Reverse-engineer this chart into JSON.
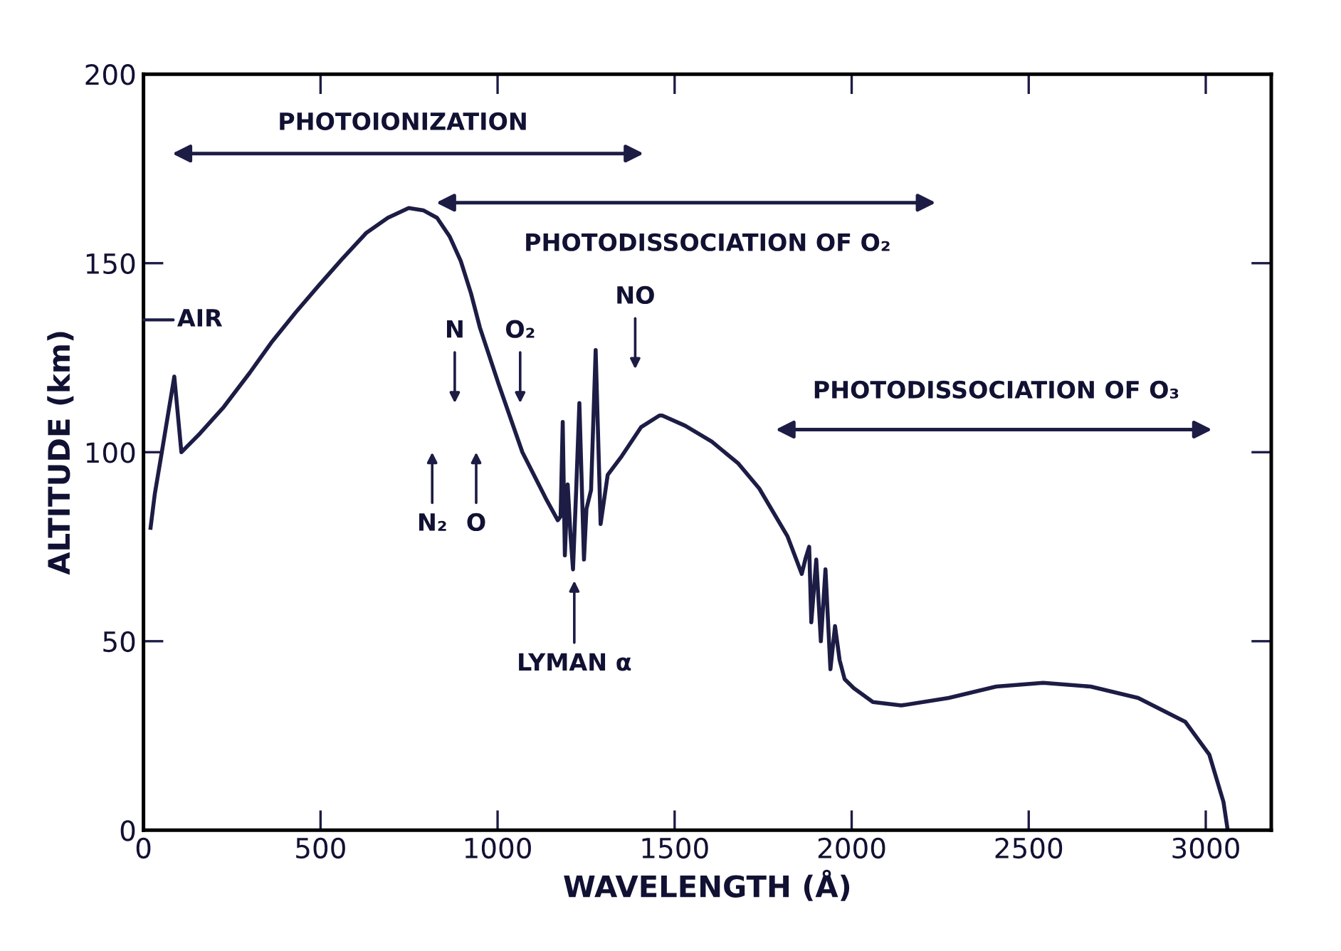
{
  "chart_data": {
    "type": "line",
    "xlabel": "WAVELENGTH (Å)",
    "ylabel": "ALTITUDE (km)",
    "xlim": [
      0,
      3185
    ],
    "ylim": [
      0,
      200
    ],
    "xticks": [
      0,
      500,
      1000,
      1500,
      2000,
      2500,
      3000
    ],
    "yticks": [
      0,
      50,
      100,
      150,
      200
    ],
    "grid": false,
    "marker": "none",
    "line_style": "solid",
    "series": [
      {
        "color": "#1c1c45",
        "x": [
          20,
          32,
          50,
          87,
          107,
          160,
          227,
          300,
          361,
          430,
          494,
          560,
          629,
          690,
          749,
          790,
          829,
          865,
          896,
          925,
          950,
          1003,
          1070,
          1136,
          1170,
          1178,
          1184,
          1190,
          1198,
          1206,
          1213,
          1222,
          1231,
          1244,
          1251,
          1264,
          1277,
          1291,
          1311,
          1351,
          1405,
          1457,
          1465,
          1530,
          1605,
          1680,
          1739,
          1819,
          1859,
          1870,
          1880,
          1886,
          1900,
          1913,
          1926,
          1940,
          1953,
          1966,
          1980,
          2006,
          2060,
          2140,
          2274,
          2408,
          2541,
          2675,
          2809,
          2942,
          3010,
          3050,
          3062
        ],
        "values": [
          80,
          89,
          99,
          120,
          100,
          105,
          112,
          121,
          129,
          137,
          144,
          151,
          158,
          162,
          164.6,
          164,
          162,
          157,
          150.6,
          142,
          133,
          118,
          100,
          87.8,
          82,
          83,
          108,
          72.7,
          91.5,
          78,
          69,
          90,
          113,
          71.6,
          85,
          90,
          127,
          81,
          94,
          99,
          106.6,
          109.7,
          109.7,
          107,
          102.8,
          97,
          90.4,
          77.7,
          67.8,
          72,
          75,
          55,
          71.6,
          50,
          69,
          42.6,
          54,
          45,
          40,
          37.6,
          33.9,
          33,
          35,
          38,
          39,
          38,
          35,
          28.7,
          20,
          7.5,
          0
        ]
      }
    ],
    "annotations": [
      "PHOTOIONIZATION",
      "PHOTODISSOCIATION OF O₂",
      "PHOTODISSOCIATION OF O₃",
      "AIR",
      "N",
      "O₂",
      "NO",
      "N₂",
      "O",
      "LYMAN α"
    ]
  }
}
